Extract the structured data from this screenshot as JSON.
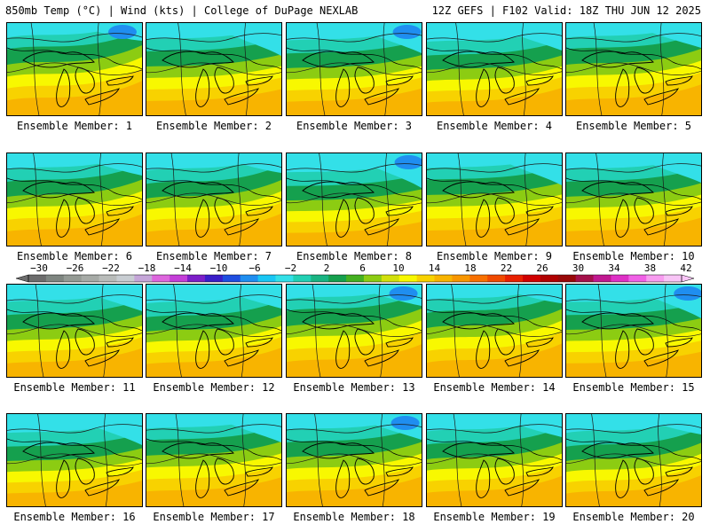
{
  "header": {
    "left": "850mb Temp (°C) | Wind (kts) | College of DuPage NEXLAB",
    "right": "12Z GEFS | F102 Valid: 18Z THU JUN 12 2025"
  },
  "member_label_prefix": "Ensemble Member:",
  "members": [
    1,
    2,
    3,
    4,
    5,
    6,
    7,
    8,
    9,
    10,
    11,
    12,
    13,
    14,
    15,
    16,
    17,
    18,
    19,
    20
  ],
  "colorbar": {
    "ticks": [
      "-30",
      "-26",
      "-22",
      "-18",
      "-14",
      "-10",
      "-6",
      "-2",
      "2",
      "6",
      "10",
      "14",
      "18",
      "22",
      "26",
      "30",
      "34",
      "38",
      "42"
    ],
    "colors": [
      "#6c6c6c",
      "#7e8580",
      "#949a94",
      "#a6aaa6",
      "#b9bcba",
      "#c8cdd2",
      "#c5a6d8",
      "#dd66dd",
      "#c43ed8",
      "#7c1ec8",
      "#3a1ec8",
      "#1f4ee0",
      "#1f8ef0",
      "#19c6f4",
      "#33e0e8",
      "#22d0b4",
      "#19b482",
      "#15a04e",
      "#44b020",
      "#8ccc12",
      "#d2e00c",
      "#f8f800",
      "#f8d200",
      "#f8b400",
      "#f89600",
      "#f87000",
      "#f04a00",
      "#e82000",
      "#d00000",
      "#b00000",
      "#980808",
      "#a4104a",
      "#c01890",
      "#de30c6",
      "#f060e6",
      "#f89cf0",
      "#f8c4f6"
    ]
  }
}
